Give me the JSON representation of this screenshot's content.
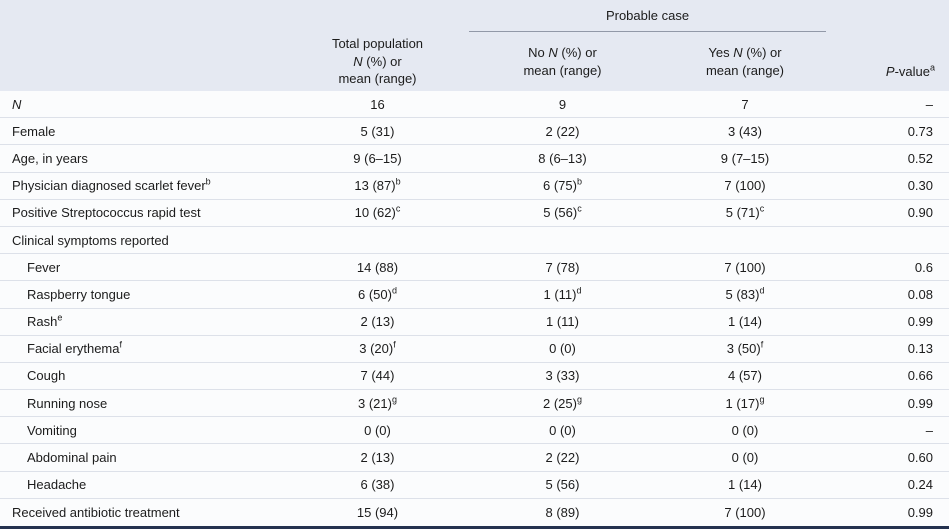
{
  "header": {
    "group_label": "Probable case",
    "total_title": "Total population",
    "sub_total": {
      "pre": "",
      "n": "N",
      "rest": " (%) or",
      "line2": "mean (range)"
    },
    "sub_no": {
      "pre": "No ",
      "n": "N",
      "rest": " (%) or",
      "line2": "mean (range)"
    },
    "sub_yes": {
      "pre": "Yes ",
      "n": "N",
      "rest": " (%) or",
      "line2": "mean (range)"
    },
    "p_label": {
      "italic": "P",
      "rest": "-value",
      "sup": "a"
    }
  },
  "rows": [
    {
      "label": "N",
      "italic": true,
      "total": "16",
      "no": "9",
      "yes": "7",
      "p": "–"
    },
    {
      "label": "Female",
      "total": "5 (31)",
      "no": "2 (22)",
      "yes": "3 (43)",
      "p": "0.73"
    },
    {
      "label": "Age, in years",
      "total": "9 (6–15)",
      "no": "8 (6–13)",
      "yes": "9 (7–15)",
      "p": "0.52"
    },
    {
      "label": "Physician diagnosed scarlet fever",
      "label_sup": "b",
      "total": "13 (87)",
      "total_sup": "b",
      "no": "6 (75)",
      "no_sup": "b",
      "yes": "7 (100)",
      "p": "0.30"
    },
    {
      "label": "Positive Streptococcus rapid test",
      "total": "10 (62)",
      "total_sup": "c",
      "no": "5 (56)",
      "no_sup": "c",
      "yes": "5 (71)",
      "yes_sup": "c",
      "p": "0.90"
    },
    {
      "label": "Clinical symptoms reported",
      "total": "",
      "no": "",
      "yes": "",
      "p": ""
    },
    {
      "label": "Fever",
      "indent": true,
      "total": "14 (88)",
      "no": "7 (78)",
      "yes": "7 (100)",
      "p": "0.6"
    },
    {
      "label": "Raspberry tongue",
      "indent": true,
      "total": "6 (50)",
      "total_sup": "d",
      "no": "1 (11)",
      "no_sup": "d",
      "yes": "5 (83)",
      "yes_sup": "d",
      "p": "0.08"
    },
    {
      "label": "Rash",
      "label_sup": "e",
      "indent": true,
      "total": "2 (13)",
      "no": "1 (11)",
      "yes": "1 (14)",
      "p": "0.99"
    },
    {
      "label": "Facial erythema",
      "label_sup": "f",
      "indent": true,
      "total": "3 (20)",
      "total_sup": "f",
      "no": "0 (0)",
      "yes": "3 (50)",
      "yes_sup": "f",
      "p": "0.13"
    },
    {
      "label": "Cough",
      "indent": true,
      "total": "7 (44)",
      "no": "3 (33)",
      "yes": "4 (57)",
      "p": "0.66"
    },
    {
      "label": "Running nose",
      "indent": true,
      "total": "3 (21)",
      "total_sup": "g",
      "no": "2 (25)",
      "no_sup": "g",
      "yes": "1 (17)",
      "yes_sup": "g",
      "p": "0.99"
    },
    {
      "label": "Vomiting",
      "indent": true,
      "total": "0 (0)",
      "no": "0 (0)",
      "yes": "0 (0)",
      "p": "–"
    },
    {
      "label": "Abdominal pain",
      "indent": true,
      "total": "2 (13)",
      "no": "2 (22)",
      "yes": "0 (0)",
      "p": "0.60"
    },
    {
      "label": "Headache",
      "indent": true,
      "total": "6 (38)",
      "no": "5 (56)",
      "yes": "1 (14)",
      "p": "0.24"
    },
    {
      "label": "Received antibiotic treatment",
      "total": "15 (94)",
      "no": "8 (89)",
      "yes": "7 (100)",
      "p": "0.99"
    }
  ]
}
